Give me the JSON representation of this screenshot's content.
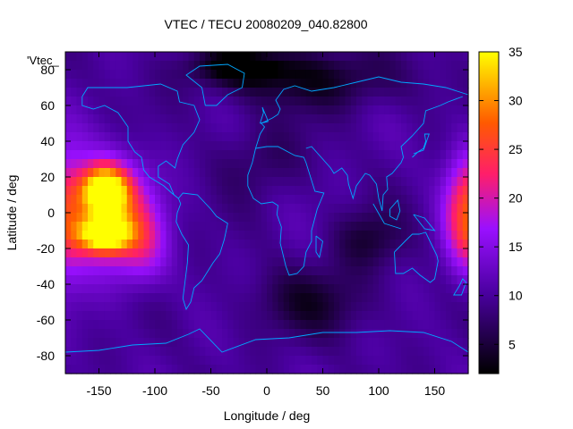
{
  "chart_data": {
    "type": "heatmap",
    "title": "VTEC / TECU 20080209_040.82800",
    "xlabel": "Longitude / deg",
    "ylabel": "Latitude / deg",
    "key_label": "'Vtec_",
    "xlim": [
      -180,
      180
    ],
    "ylim": [
      -90,
      90
    ],
    "x_ticks": [
      -150,
      -100,
      -50,
      0,
      50,
      100,
      150
    ],
    "y_ticks": [
      -80,
      -60,
      -40,
      -20,
      0,
      20,
      40,
      60,
      80
    ],
    "colorbar": {
      "range": [
        2,
        35
      ],
      "ticks": [
        5,
        10,
        15,
        20,
        25,
        30,
        35
      ]
    },
    "grid_resolution_deg": 5,
    "features": [
      {
        "lon": -145,
        "lat": 12,
        "value": 34,
        "sx": 14,
        "sy": 9
      },
      {
        "lon": -145,
        "lat": -12,
        "value": 33,
        "sx": 16,
        "sy": 7
      },
      {
        "lon": -140,
        "lat": 0,
        "value": 24,
        "sx": 26,
        "sy": 22
      },
      {
        "lon": -110,
        "lat": -20,
        "value": 16,
        "sx": 16,
        "sy": 16
      },
      {
        "lon": 178,
        "lat": 0,
        "value": 22,
        "sx": 14,
        "sy": 24
      },
      {
        "lon": -25,
        "lat": 82,
        "value": 2,
        "sx": 30,
        "sy": 7
      },
      {
        "lon": 40,
        "lat": 75,
        "value": 4,
        "sx": 60,
        "sy": 12
      },
      {
        "lon": 40,
        "lat": -50,
        "value": 5,
        "sx": 40,
        "sy": 14
      },
      {
        "lon": 90,
        "lat": -15,
        "value": 5,
        "sx": 22,
        "sy": 12
      },
      {
        "lon": -5,
        "lat": 30,
        "value": 7,
        "sx": 30,
        "sy": 15
      }
    ],
    "base_value": 10,
    "colors": {
      "low": "#000000",
      "mid": "#7f00ff",
      "upper": "#ff0000",
      "high": "#ffff00",
      "coastline": "#00a8ff"
    }
  }
}
